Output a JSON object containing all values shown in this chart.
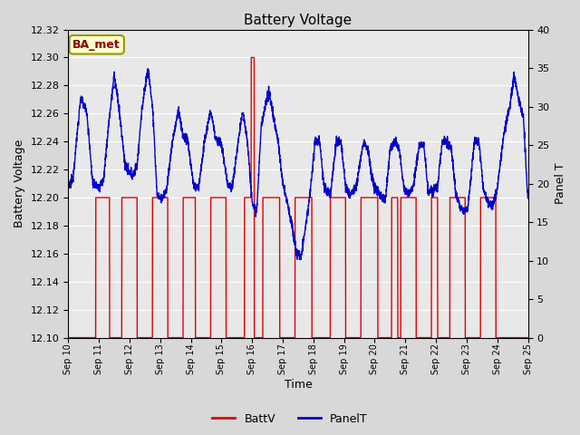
{
  "title": "Battery Voltage",
  "xlabel": "Time",
  "ylabel_left": "Battery Voltage",
  "ylabel_right": "Panel T",
  "annotation": "BA_met",
  "ylim_left": [
    12.1,
    12.32
  ],
  "ylim_right": [
    0,
    40
  ],
  "yticks_left": [
    12.1,
    12.12,
    12.14,
    12.16,
    12.18,
    12.2,
    12.22,
    12.24,
    12.26,
    12.28,
    12.3,
    12.32
  ],
  "yticks_right": [
    0,
    5,
    10,
    15,
    20,
    25,
    30,
    35,
    40
  ],
  "bg_color": "#d8d8d8",
  "plot_bg_color": "#e8e8e8",
  "red_color": "#dd0000",
  "blue_color": "#0000cc",
  "legend_items": [
    "BattV",
    "PanelT"
  ],
  "xmin": 10,
  "xmax": 25
}
